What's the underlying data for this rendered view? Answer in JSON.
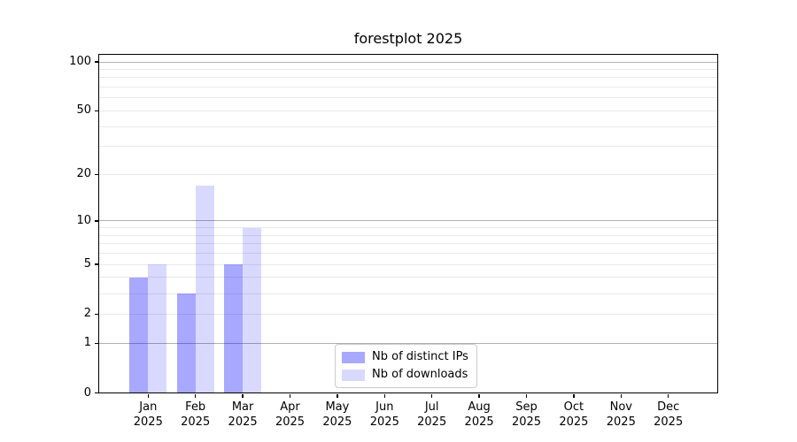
{
  "title": "forestplot 2025",
  "chart_data": {
    "type": "bar",
    "title": "forestplot 2025",
    "categories": [
      "Jan",
      "Feb",
      "Mar",
      "Apr",
      "May",
      "Jun",
      "Jul",
      "Aug",
      "Sep",
      "Oct",
      "Nov",
      "Dec"
    ],
    "x_tick_year": "2025",
    "series": [
      {
        "name": "Nb of distinct IPs",
        "color": "rgba(0,0,255,0.34)",
        "values": [
          4,
          3,
          5,
          0,
          0,
          0,
          0,
          0,
          0,
          0,
          0,
          0
        ]
      },
      {
        "name": "Nb of downloads",
        "color": "rgba(0,0,255,0.15)",
        "values": [
          5,
          17,
          9,
          0,
          0,
          0,
          0,
          0,
          0,
          0,
          0,
          0
        ]
      }
    ],
    "xlabel": "",
    "ylabel": "",
    "y_axis": {
      "scale": "log1p",
      "tick_values": [
        0,
        1,
        2,
        5,
        10,
        20,
        50,
        100
      ],
      "ylim": [
        0,
        110.5
      ],
      "major_grid_values": [
        1,
        10,
        100
      ],
      "minor_grid_values": [
        2,
        3,
        4,
        5,
        6,
        7,
        8,
        9,
        20,
        30,
        40,
        50,
        60,
        70,
        80,
        90
      ]
    },
    "legend_position": "lower center",
    "colors": {
      "major_grid": "#b0b0b0",
      "minor_grid": "#e8e8e8",
      "spine": "#000000",
      "text": "#000000"
    }
  }
}
